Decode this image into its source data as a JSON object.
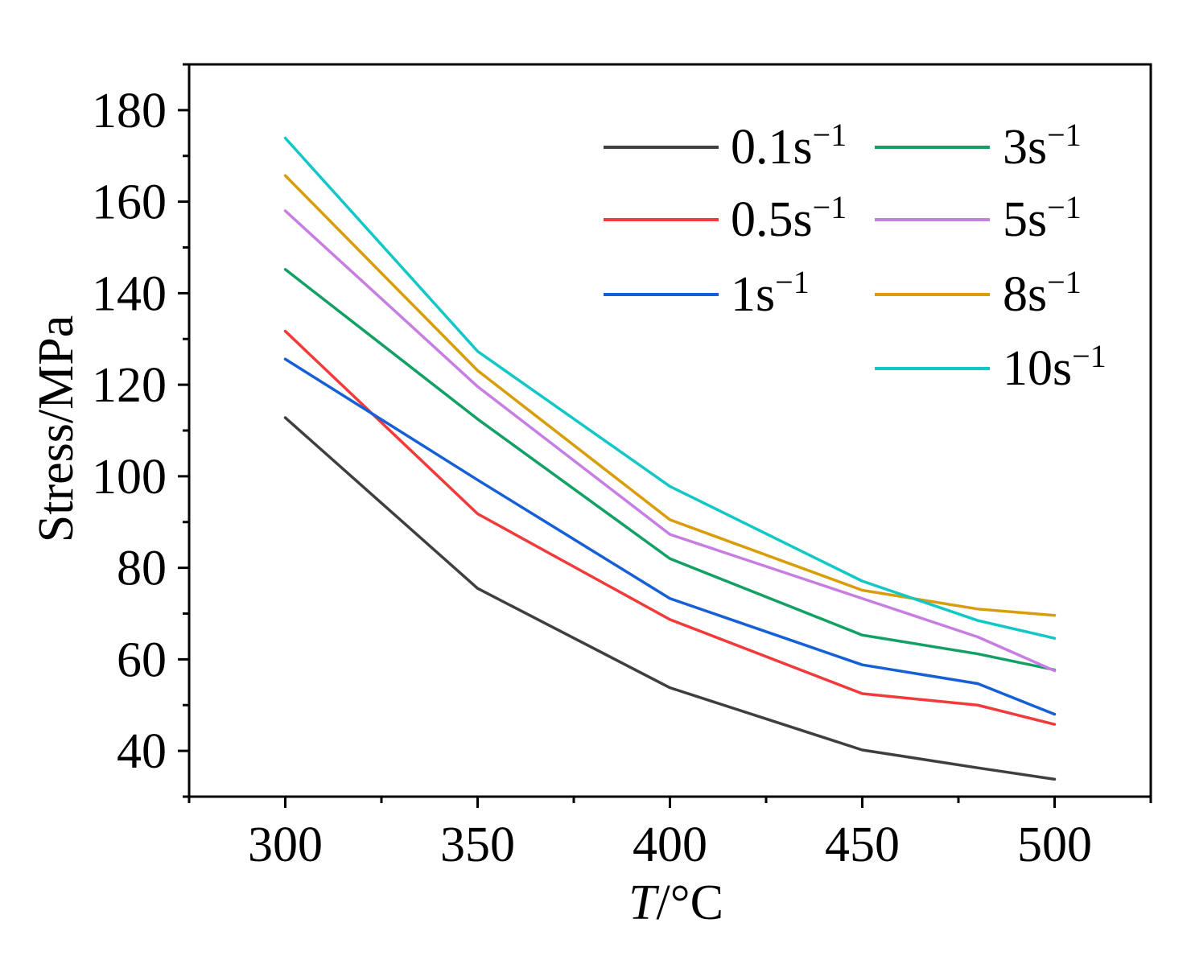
{
  "chart_data": {
    "type": "line",
    "title": "",
    "xlabel_italic": "T",
    "xlabel_rest": "/°C",
    "ylabel": "Stress/MPa",
    "x": [
      300,
      350,
      400,
      450,
      480,
      500
    ],
    "xlim": [
      275,
      525
    ],
    "ylim": [
      30,
      190
    ],
    "xticks": [
      300,
      350,
      400,
      450,
      500
    ],
    "yticks": [
      40,
      60,
      80,
      100,
      120,
      140,
      160,
      180
    ],
    "legend_position": "top-right",
    "series": [
      {
        "name": "0.1",
        "unit": "s",
        "exp": "−1",
        "color": "#3f3f3f",
        "values": [
          112.8,
          75.5,
          53.8,
          40.2,
          36.3,
          33.8
        ]
      },
      {
        "name": "0.5",
        "unit": "s",
        "exp": "−1",
        "color": "#f23a3a",
        "values": [
          131.7,
          91.8,
          68.7,
          52.5,
          50.0,
          45.8
        ]
      },
      {
        "name": "1",
        "unit": "s",
        "exp": "−1",
        "color": "#1560d6",
        "values": [
          125.6,
          99.2,
          73.3,
          58.8,
          54.7,
          48.0
        ]
      },
      {
        "name": "3",
        "unit": "s",
        "exp": "−1",
        "color": "#13a065",
        "values": [
          145.2,
          112.5,
          82.0,
          65.3,
          61.2,
          57.7
        ]
      },
      {
        "name": "5",
        "unit": "s",
        "exp": "−1",
        "color": "#c77ee3",
        "values": [
          158.0,
          119.6,
          87.3,
          73.3,
          64.9,
          57.5
        ]
      },
      {
        "name": "8",
        "unit": "s",
        "exp": "−1",
        "color": "#d99d09",
        "values": [
          165.7,
          123.1,
          90.5,
          75.1,
          71.0,
          69.6
        ]
      },
      {
        "name": "10",
        "unit": "s",
        "exp": "−1",
        "color": "#13c7c7",
        "values": [
          173.9,
          127.3,
          97.8,
          77.1,
          68.5,
          64.6
        ]
      }
    ]
  }
}
